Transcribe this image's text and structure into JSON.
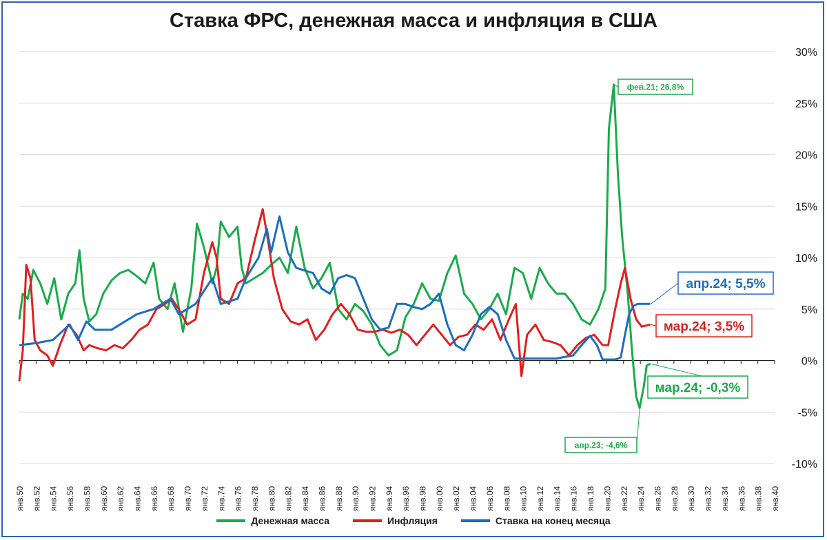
{
  "chart_data": {
    "type": "line",
    "title": "Ставка ФРС, денежная масса и инфляция в США",
    "x_ticks": [
      "янв.50",
      "янв.52",
      "янв.54",
      "янв.56",
      "янв.58",
      "янв.60",
      "янв.62",
      "янв.64",
      "янв.66",
      "янв.68",
      "янв.70",
      "янв.72",
      "янв.74",
      "янв.76",
      "янв.78",
      "янв.80",
      "янв.82",
      "янв.84",
      "янв.86",
      "янв.88",
      "янв.90",
      "янв.92",
      "янв.94",
      "янв.96",
      "янв.98",
      "янв.00",
      "янв.02",
      "янв.04",
      "янв.06",
      "янв.08",
      "янв.10",
      "янв.12",
      "янв.14",
      "янв.16",
      "янв.18",
      "янв.20",
      "янв.22",
      "янв.24",
      "янв.26",
      "янв.28",
      "янв.30",
      "янв.32",
      "янв.34",
      "янв.36",
      "янв.38",
      "янв.40"
    ],
    "y_ticks": [
      "30%",
      "25%",
      "20%",
      "15%",
      "10%",
      "5%",
      "0%",
      "-5%",
      "-10%"
    ],
    "ylim": [
      -10,
      30
    ],
    "grid": true,
    "legend_position": "bottom",
    "series": [
      {
        "name": "Денежная масса",
        "color": "#1aab4b",
        "points": [
          [
            0,
            4.0
          ],
          [
            5,
            6.5
          ],
          [
            12,
            6.0
          ],
          [
            20,
            8.8
          ],
          [
            30,
            7.5
          ],
          [
            40,
            5.5
          ],
          [
            50,
            8.0
          ],
          [
            60,
            4.0
          ],
          [
            70,
            6.5
          ],
          [
            80,
            7.5
          ],
          [
            86,
            10.7
          ],
          [
            92,
            6.0
          ],
          [
            100,
            3.8
          ],
          [
            110,
            4.5
          ],
          [
            120,
            6.5
          ],
          [
            132,
            7.8
          ],
          [
            144,
            8.5
          ],
          [
            156,
            8.8
          ],
          [
            168,
            8.2
          ],
          [
            180,
            7.5
          ],
          [
            192,
            9.5
          ],
          [
            200,
            6.0
          ],
          [
            212,
            5.0
          ],
          [
            222,
            7.5
          ],
          [
            234,
            2.8
          ],
          [
            246,
            7.0
          ],
          [
            254,
            13.3
          ],
          [
            264,
            11.0
          ],
          [
            276,
            7.5
          ],
          [
            282,
            9.0
          ],
          [
            288,
            13.5
          ],
          [
            300,
            12.0
          ],
          [
            312,
            13.0
          ],
          [
            318,
            9.0
          ],
          [
            324,
            7.5
          ],
          [
            336,
            8.0
          ],
          [
            348,
            8.5
          ],
          [
            360,
            9.3
          ],
          [
            372,
            10.0
          ],
          [
            384,
            8.5
          ],
          [
            396,
            13.0
          ],
          [
            408,
            9.0
          ],
          [
            420,
            7.0
          ],
          [
            432,
            8.0
          ],
          [
            444,
            9.5
          ],
          [
            456,
            5.0
          ],
          [
            468,
            4.0
          ],
          [
            480,
            5.5
          ],
          [
            492,
            4.8
          ],
          [
            504,
            3.5
          ],
          [
            516,
            1.5
          ],
          [
            528,
            0.5
          ],
          [
            540,
            1.0
          ],
          [
            552,
            4.2
          ],
          [
            564,
            5.5
          ],
          [
            576,
            7.5
          ],
          [
            588,
            6.0
          ],
          [
            600,
            5.8
          ],
          [
            612,
            8.5
          ],
          [
            624,
            10.2
          ],
          [
            636,
            6.5
          ],
          [
            648,
            5.5
          ],
          [
            660,
            4.0
          ],
          [
            672,
            5.0
          ],
          [
            684,
            6.5
          ],
          [
            696,
            4.5
          ],
          [
            708,
            9.0
          ],
          [
            720,
            8.5
          ],
          [
            732,
            6.0
          ],
          [
            744,
            9.0
          ],
          [
            756,
            7.5
          ],
          [
            768,
            6.5
          ],
          [
            780,
            6.5
          ],
          [
            792,
            5.5
          ],
          [
            804,
            4.0
          ],
          [
            816,
            3.5
          ],
          [
            828,
            5.0
          ],
          [
            838,
            7.0
          ],
          [
            843,
            22.5
          ],
          [
            850,
            26.8
          ],
          [
            856,
            18.0
          ],
          [
            862,
            12.0
          ],
          [
            870,
            6.5
          ],
          [
            876,
            1.0
          ],
          [
            882,
            -3.5
          ],
          [
            887,
            -4.6
          ],
          [
            893,
            -2.5
          ],
          [
            897,
            -0.5
          ],
          [
            902,
            -0.3
          ]
        ]
      },
      {
        "name": "Инфляция",
        "color": "#e01f1f",
        "points": [
          [
            0,
            -2.0
          ],
          [
            5,
            1.0
          ],
          [
            10,
            9.3
          ],
          [
            16,
            8.0
          ],
          [
            22,
            2.0
          ],
          [
            30,
            1.0
          ],
          [
            40,
            0.5
          ],
          [
            48,
            -0.5
          ],
          [
            58,
            1.5
          ],
          [
            70,
            3.5
          ],
          [
            82,
            2.5
          ],
          [
            92,
            1.0
          ],
          [
            100,
            1.5
          ],
          [
            112,
            1.2
          ],
          [
            124,
            1.0
          ],
          [
            136,
            1.5
          ],
          [
            148,
            1.2
          ],
          [
            160,
            2.0
          ],
          [
            172,
            3.0
          ],
          [
            184,
            3.5
          ],
          [
            196,
            5.0
          ],
          [
            208,
            5.5
          ],
          [
            218,
            6.0
          ],
          [
            228,
            5.0
          ],
          [
            240,
            3.5
          ],
          [
            252,
            4.0
          ],
          [
            264,
            8.5
          ],
          [
            276,
            11.5
          ],
          [
            282,
            10.0
          ],
          [
            288,
            6.0
          ],
          [
            300,
            5.5
          ],
          [
            312,
            7.5
          ],
          [
            324,
            8.0
          ],
          [
            336,
            11.5
          ],
          [
            348,
            14.7
          ],
          [
            356,
            11.5
          ],
          [
            364,
            8.0
          ],
          [
            376,
            5.0
          ],
          [
            388,
            3.8
          ],
          [
            400,
            3.5
          ],
          [
            412,
            4.0
          ],
          [
            424,
            2.0
          ],
          [
            436,
            3.0
          ],
          [
            448,
            4.5
          ],
          [
            460,
            5.5
          ],
          [
            472,
            4.5
          ],
          [
            484,
            3.0
          ],
          [
            496,
            2.8
          ],
          [
            508,
            2.8
          ],
          [
            520,
            3.0
          ],
          [
            532,
            2.7
          ],
          [
            544,
            3.0
          ],
          [
            556,
            2.5
          ],
          [
            568,
            1.5
          ],
          [
            580,
            2.5
          ],
          [
            592,
            3.5
          ],
          [
            604,
            2.5
          ],
          [
            616,
            1.5
          ],
          [
            628,
            2.3
          ],
          [
            640,
            2.5
          ],
          [
            652,
            3.5
          ],
          [
            664,
            3.0
          ],
          [
            676,
            4.0
          ],
          [
            688,
            2.0
          ],
          [
            700,
            4.0
          ],
          [
            710,
            5.5
          ],
          [
            718,
            -1.5
          ],
          [
            726,
            2.5
          ],
          [
            738,
            3.5
          ],
          [
            750,
            2.0
          ],
          [
            762,
            1.8
          ],
          [
            774,
            1.5
          ],
          [
            786,
            0.5
          ],
          [
            798,
            1.5
          ],
          [
            810,
            2.2
          ],
          [
            822,
            2.5
          ],
          [
            834,
            1.5
          ],
          [
            842,
            1.5
          ],
          [
            852,
            5.0
          ],
          [
            860,
            7.5
          ],
          [
            866,
            9.0
          ],
          [
            874,
            6.0
          ],
          [
            882,
            4.0
          ],
          [
            890,
            3.3
          ],
          [
            902,
            3.5
          ]
        ]
      },
      {
        "name": "Ставка на конец месяца",
        "color": "#1c6dbf",
        "points": [
          [
            0,
            1.5
          ],
          [
            24,
            1.7
          ],
          [
            48,
            2.0
          ],
          [
            72,
            3.5
          ],
          [
            84,
            2.0
          ],
          [
            96,
            3.8
          ],
          [
            108,
            3.0
          ],
          [
            132,
            3.0
          ],
          [
            144,
            3.5
          ],
          [
            168,
            4.5
          ],
          [
            192,
            5.0
          ],
          [
            216,
            6.0
          ],
          [
            228,
            4.5
          ],
          [
            252,
            5.5
          ],
          [
            276,
            8.0
          ],
          [
            288,
            5.5
          ],
          [
            312,
            6.0
          ],
          [
            324,
            8.0
          ],
          [
            342,
            10.0
          ],
          [
            354,
            12.8
          ],
          [
            360,
            10.5
          ],
          [
            372,
            14.0
          ],
          [
            384,
            10.5
          ],
          [
            396,
            9.0
          ],
          [
            420,
            8.5
          ],
          [
            432,
            7.0
          ],
          [
            444,
            6.5
          ],
          [
            456,
            8.0
          ],
          [
            468,
            8.3
          ],
          [
            480,
            8.0
          ],
          [
            492,
            6.0
          ],
          [
            504,
            4.0
          ],
          [
            516,
            3.0
          ],
          [
            528,
            3.2
          ],
          [
            540,
            5.5
          ],
          [
            552,
            5.5
          ],
          [
            564,
            5.2
          ],
          [
            576,
            5.0
          ],
          [
            588,
            5.5
          ],
          [
            600,
            6.5
          ],
          [
            612,
            3.5
          ],
          [
            624,
            1.5
          ],
          [
            636,
            1.0
          ],
          [
            648,
            2.5
          ],
          [
            660,
            4.5
          ],
          [
            672,
            5.2
          ],
          [
            684,
            4.5
          ],
          [
            696,
            2.0
          ],
          [
            708,
            0.2
          ],
          [
            720,
            0.2
          ],
          [
            744,
            0.2
          ],
          [
            768,
            0.2
          ],
          [
            792,
            0.5
          ],
          [
            804,
            1.5
          ],
          [
            816,
            2.4
          ],
          [
            826,
            1.5
          ],
          [
            834,
            0.1
          ],
          [
            852,
            0.1
          ],
          [
            860,
            0.3
          ],
          [
            866,
            2.5
          ],
          [
            872,
            4.5
          ],
          [
            878,
            5.3
          ],
          [
            884,
            5.5
          ],
          [
            902,
            5.5
          ]
        ]
      }
    ],
    "annotations": [
      {
        "text": "фев.21; 26,8%",
        "series": "Денежная масса",
        "at": [
          850,
          26.8
        ]
      },
      {
        "text": "апр.23; -4,6%",
        "series": "Денежная масса",
        "at": [
          887,
          -4.6
        ]
      },
      {
        "text": "мар.24; -0,3%",
        "series": "Денежная масса",
        "at": [
          902,
          -0.3
        ]
      },
      {
        "text": "мар.24; 3,5%",
        "series": "Инфляция",
        "at": [
          902,
          3.5
        ]
      },
      {
        "text": "апр.24; 5,5%",
        "series": "Ставка на конец месяца",
        "at": [
          903,
          5.5
        ]
      }
    ]
  }
}
